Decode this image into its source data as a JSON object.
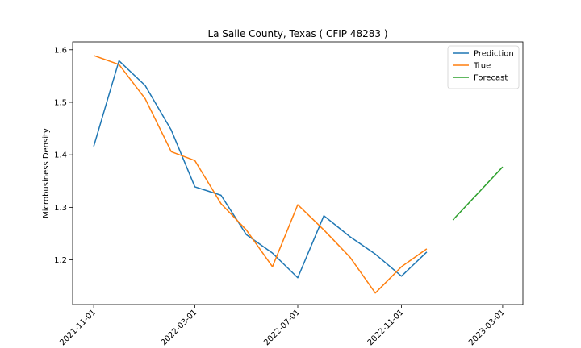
{
  "chart_data": {
    "type": "line",
    "title": "La Salle County, Texas ( CFIP 48283 )",
    "xlabel": "",
    "ylabel": "Microbusiness Density",
    "ylim": [
      1.115,
      1.615
    ],
    "xlim": [
      "2021-10-07",
      "2023-03-25"
    ],
    "y_ticks": [
      1.2,
      1.3,
      1.4,
      1.5,
      1.6
    ],
    "y_tick_labels": [
      "1.2",
      "1.3",
      "1.4",
      "1.5",
      "1.6"
    ],
    "x_ticks": [
      "2021-11-01",
      "2022-03-01",
      "2022-07-01",
      "2022-11-01",
      "2023-03-01"
    ],
    "x_tick_labels": [
      "2021-11-01",
      "2022-03-01",
      "2022-07-01",
      "2022-11-01",
      "2023-03-01"
    ],
    "legend_position": "top-right",
    "series": [
      {
        "name": "Prediction",
        "color": "#1f77b4",
        "x": [
          "2021-11-01",
          "2021-12-01",
          "2022-01-01",
          "2022-02-01",
          "2022-03-01",
          "2022-04-01",
          "2022-05-01",
          "2022-06-01",
          "2022-07-01",
          "2022-08-01",
          "2022-09-01",
          "2022-10-01",
          "2022-11-01",
          "2022-12-01"
        ],
        "values": [
          1.416,
          1.579,
          1.532,
          1.447,
          1.339,
          1.323,
          1.248,
          1.213,
          1.166,
          1.284,
          1.244,
          1.211,
          1.169,
          1.215
        ]
      },
      {
        "name": "True",
        "color": "#ff7f0e",
        "x": [
          "2021-11-01",
          "2021-12-01",
          "2022-01-01",
          "2022-02-01",
          "2022-03-01",
          "2022-04-01",
          "2022-05-01",
          "2022-06-01",
          "2022-07-01",
          "2022-08-01",
          "2022-09-01",
          "2022-10-01",
          "2022-11-01",
          "2022-12-01"
        ],
        "values": [
          1.589,
          1.572,
          1.507,
          1.406,
          1.389,
          1.307,
          1.257,
          1.187,
          1.305,
          1.257,
          1.205,
          1.137,
          1.187,
          1.221
        ]
      },
      {
        "name": "Forecast",
        "color": "#2ca02c",
        "x": [
          "2023-01-01",
          "2023-02-01",
          "2023-03-01"
        ],
        "values": [
          1.276,
          1.329,
          1.377
        ]
      }
    ]
  }
}
